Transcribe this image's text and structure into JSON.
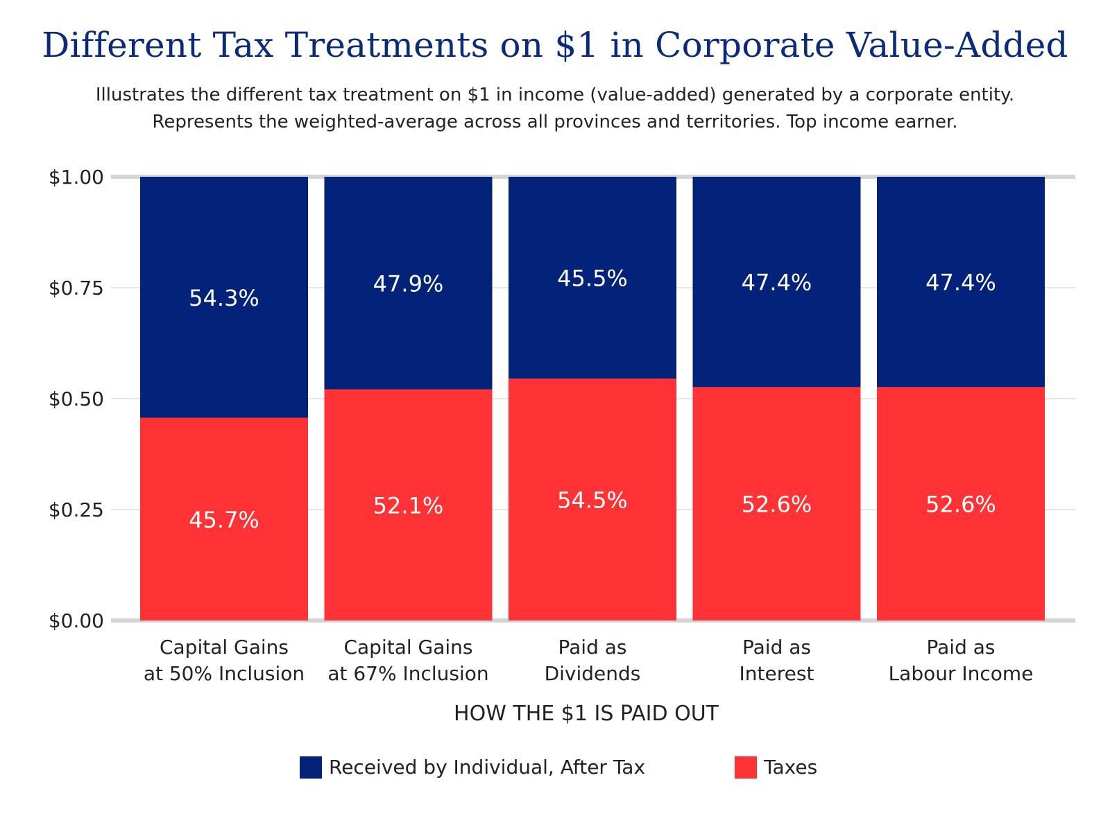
{
  "title": "Different Tax Treatments on $1 in Corporate Value-Added",
  "subtitle": [
    "Illustrates the different tax treatment on $1 in income (value-added) generated by a corporate entity.",
    "Represents the weighted-average across all provinces and territories. Top income earner."
  ],
  "colors": {
    "after_tax": "#03237a",
    "taxes": "#ff3336",
    "title": "#0b2a7a",
    "text": "#222222",
    "grid": "#dcdcdc",
    "axis": "#d4d4d4"
  },
  "chart_data": {
    "type": "bar",
    "stacked": true,
    "categories": [
      [
        "Capital Gains",
        "at 50% Inclusion"
      ],
      [
        "Capital Gains",
        "at 67% Inclusion"
      ],
      [
        "Paid as",
        "Dividends"
      ],
      [
        "Paid as",
        "Interest"
      ],
      [
        "Paid as",
        "Labour Income"
      ]
    ],
    "series": [
      {
        "name": "Taxes",
        "color": "#ff3336",
        "values": [
          0.457,
          0.521,
          0.545,
          0.526,
          0.526
        ],
        "labels": [
          "45.7%",
          "52.1%",
          "54.5%",
          "52.6%",
          "52.6%"
        ]
      },
      {
        "name": "Received by Individual, After Tax",
        "color": "#03237a",
        "values": [
          0.543,
          0.479,
          0.455,
          0.474,
          0.474
        ],
        "labels": [
          "54.3%",
          "47.9%",
          "45.5%",
          "47.4%",
          "47.4%"
        ]
      }
    ],
    "title": "Different Tax Treatments on $1 in Corporate Value-Added",
    "xlabel": "HOW THE $1 IS PAID OUT",
    "ylabel": "",
    "ylim": [
      0,
      1
    ],
    "yticks": [
      0,
      0.25,
      0.5,
      0.75,
      1
    ],
    "ytick_labels": [
      "$0.00",
      "$0.25",
      "$0.50",
      "$0.75",
      "$1.00"
    ],
    "grid": true,
    "legend": {
      "position": "bottom",
      "entries": [
        "Received by Individual, After Tax",
        "Taxes"
      ]
    }
  }
}
